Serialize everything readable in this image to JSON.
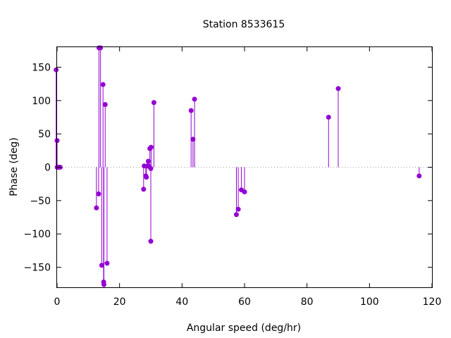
{
  "colors": {
    "series": "#9400d3"
  },
  "chart_data": {
    "type": "scatter",
    "style": "impulses-with-points",
    "title": "Station 8533615",
    "xlabel": "Angular speed (deg/hr)",
    "ylabel": "Phase (deg)",
    "xlim": [
      0,
      120
    ],
    "ylim": [
      -180,
      180
    ],
    "xticks": [
      0,
      20,
      40,
      60,
      80,
      100,
      120
    ],
    "yticks": [
      -150,
      -100,
      -50,
      0,
      50,
      100,
      150
    ],
    "grid": false,
    "legend": "none",
    "points": [
      {
        "x": -0.3,
        "y": 146
      },
      {
        "x": 0.0,
        "y": 40
      },
      {
        "x": 0.04,
        "y": 0
      },
      {
        "x": 0.08,
        "y": 0
      },
      {
        "x": 0.5,
        "y": 0
      },
      {
        "x": 1.0,
        "y": 0
      },
      {
        "x": 12.6,
        "y": -61
      },
      {
        "x": 13.3,
        "y": -40
      },
      {
        "x": 13.4,
        "y": 179
      },
      {
        "x": 13.9,
        "y": 179
      },
      {
        "x": 14.3,
        "y": -147
      },
      {
        "x": 14.7,
        "y": 124
      },
      {
        "x": 14.9,
        "y": -172
      },
      {
        "x": 15.0,
        "y": -176
      },
      {
        "x": 15.4,
        "y": 94
      },
      {
        "x": 16.0,
        "y": -144
      },
      {
        "x": 27.7,
        "y": -33
      },
      {
        "x": 27.9,
        "y": 2
      },
      {
        "x": 28.4,
        "y": -13
      },
      {
        "x": 28.6,
        "y": -15
      },
      {
        "x": 29.0,
        "y": 2
      },
      {
        "x": 29.2,
        "y": 9
      },
      {
        "x": 29.5,
        "y": 1
      },
      {
        "x": 29.7,
        "y": 28
      },
      {
        "x": 30.0,
        "y": -2
      },
      {
        "x": 30.0,
        "y": -111
      },
      {
        "x": 30.1,
        "y": 30
      },
      {
        "x": 31.0,
        "y": 97
      },
      {
        "x": 42.9,
        "y": 85
      },
      {
        "x": 43.5,
        "y": 42
      },
      {
        "x": 44.0,
        "y": 102
      },
      {
        "x": 57.4,
        "y": -71
      },
      {
        "x": 58.0,
        "y": -63
      },
      {
        "x": 59.0,
        "y": -34
      },
      {
        "x": 60.0,
        "y": -37
      },
      {
        "x": 86.9,
        "y": 75
      },
      {
        "x": 90.0,
        "y": 118
      },
      {
        "x": 115.9,
        "y": -13
      }
    ]
  }
}
